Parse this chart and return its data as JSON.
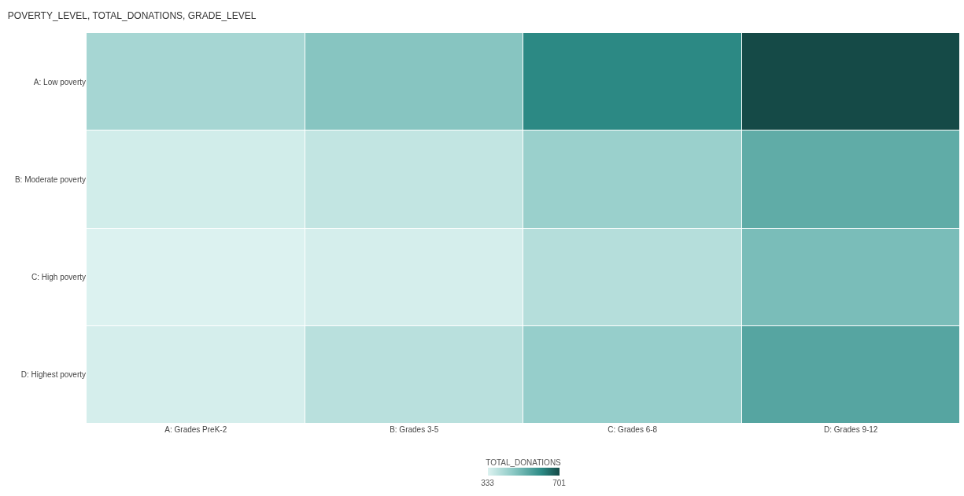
{
  "chart_data": {
    "type": "heatmap",
    "title": "POVERTY_LEVEL, TOTAL_DONATIONS, GRADE_LEVEL",
    "categories": [
      "A: Grades PreK-2",
      "B: Grades 3-5",
      "C: Grades 6-8",
      "D: Grades 9-12"
    ],
    "y_categories": [
      "A: Low poverty",
      "B: Moderate poverty",
      "C: High poverty",
      "D: Highest poverty"
    ],
    "cells": [
      [
        420,
        470,
        610,
        701
      ],
      [
        350,
        375,
        440,
        530
      ],
      [
        333,
        345,
        395,
        490
      ],
      [
        345,
        390,
        445,
        545
      ]
    ],
    "clabel": "TOTAL_DONATIONS",
    "clim": [
      333,
      701
    ],
    "cticks": [
      333,
      701
    ]
  }
}
